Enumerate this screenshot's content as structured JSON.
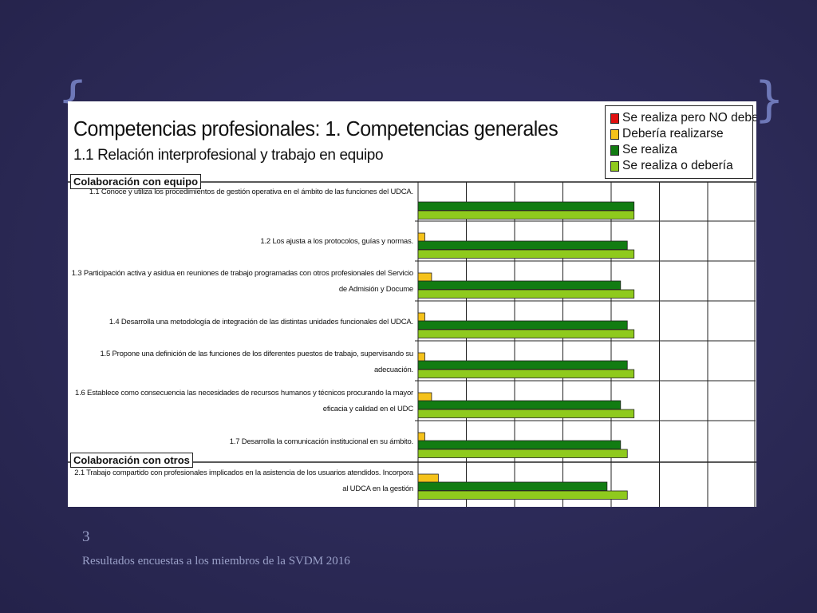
{
  "slide": {
    "page_number": "3",
    "caption": "Resultados encuestas a los miembros de la SVDM 2016"
  },
  "chart_data": {
    "type": "bar",
    "orientation": "horizontal",
    "title": "Competencias profesionales: 1. Competencias generales",
    "subtitle": "1.1  Relación interprofesional y trabajo en equipo",
    "xlim": [
      0,
      100
    ],
    "grid": true,
    "legend_position": "top-right",
    "sections": [
      {
        "label": "Colaboración con equipo",
        "start_index": 0
      },
      {
        "label": "Colaboración con otros",
        "start_index": 7
      }
    ],
    "categories": [
      "1.1 Conoce y utiliza los procedimientos de gestión operativa en el ámbito de las funciones del UDCA.",
      "1.2 Los ajusta a los protocolos, guías y normas.",
      "1.3 Participación activa y asidua en reuniones de trabajo programadas con otros profesionales del Servicio de Admisión y Docume",
      "1.4 Desarrolla una metodología de integración de las distintas unidades funcionales del UDCA.",
      "1.5 Propone una definición de las funciones de los diferentes puestos de trabajo, supervisando su adecuación.",
      "1.6 Establece como consecuencia las necesidades de recursos humanos y técnicos procurando la mayor eficacia y calidad en el UDC",
      "1.7 Desarrolla la comunicación institucional en su ámbito.",
      "2.1 Trabajo compartido con profesionales implicados en la asistencia de los usuarios atendidos. Incorpora al UDCA en la gestión"
    ],
    "series": [
      {
        "name": "Se realiza pero NO debería",
        "color": "#e01010",
        "values": [
          0,
          0,
          0,
          0,
          0,
          0,
          0,
          0
        ]
      },
      {
        "name": "Debería realizarse",
        "color": "#f5c21a",
        "values": [
          0,
          2,
          4,
          2,
          2,
          4,
          2,
          6
        ]
      },
      {
        "name": "Se realiza",
        "color": "#127c12",
        "values": [
          64,
          62,
          60,
          62,
          62,
          60,
          60,
          56
        ]
      },
      {
        "name": "Se realiza o debería",
        "color": "#8fca1d",
        "values": [
          64,
          64,
          64,
          64,
          64,
          64,
          62,
          62
        ]
      }
    ]
  }
}
